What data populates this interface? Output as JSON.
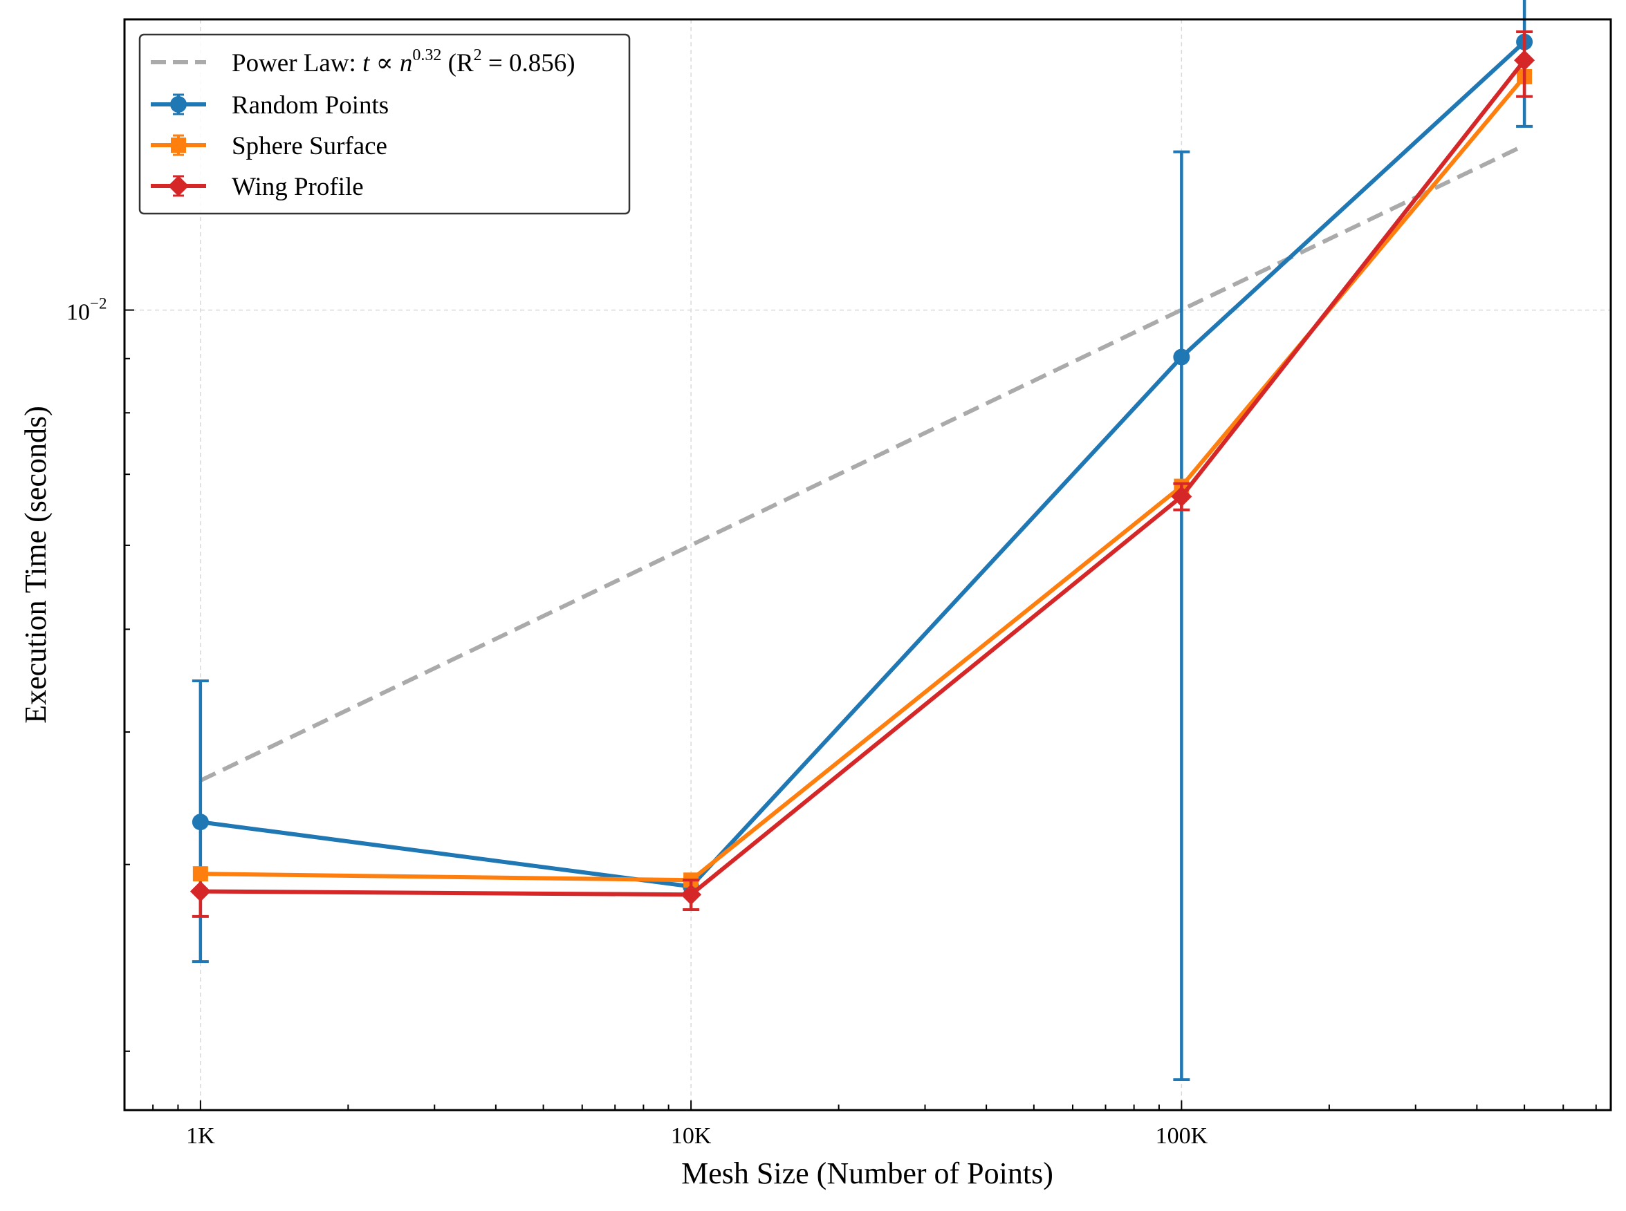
{
  "chart_data": {
    "type": "line",
    "xlabel": "Mesh Size (Number of Points)",
    "ylabel": "Execution Time (seconds)",
    "x_scale": "log",
    "y_scale": "log",
    "xlim": [
      700,
      750000
    ],
    "ylim": [
      0.00176,
      0.0188
    ],
    "x_ticks": [
      {
        "value": 1000,
        "label": "1K"
      },
      {
        "value": 10000,
        "label": "10K"
      },
      {
        "value": 100000,
        "label": "100K"
      }
    ],
    "y_ticks": [
      {
        "value": 0.01,
        "label_base": "10",
        "label_exp": "−2"
      }
    ],
    "grid": true,
    "legend_position": "top-left",
    "series": [
      {
        "name": "Random Points",
        "color": "#1f77b4",
        "marker": "circle",
        "x": [
          1000,
          10000,
          100000,
          500000
        ],
        "y": [
          0.00329,
          0.00286,
          0.00903,
          0.0179
        ],
        "err_low": [
          0.00243,
          null,
          0.00188,
          0.0149
        ],
        "err_high": [
          0.00447,
          null,
          0.0141,
          0.0218
        ]
      },
      {
        "name": "Sphere Surface",
        "color": "#ff7f0e",
        "marker": "square",
        "x": [
          1000,
          10000,
          100000,
          500000
        ],
        "y": [
          0.00294,
          0.0029,
          0.00682,
          0.0166
        ],
        "err_low": [
          null,
          null,
          null,
          null
        ],
        "err_high": [
          null,
          null,
          null,
          null
        ]
      },
      {
        "name": "Wing Profile",
        "color": "#d62728",
        "marker": "diamond",
        "x": [
          1000,
          10000,
          100000,
          500000
        ],
        "y": [
          0.00283,
          0.00281,
          0.00667,
          0.0172
        ],
        "err_low": [
          0.00268,
          0.00272,
          0.00648,
          0.0159
        ],
        "err_high": [
          null,
          0.0029,
          0.00686,
          0.0183
        ]
      }
    ],
    "fit_line": {
      "name_prefix": "Power Law: ",
      "name_formula": "t ∝ n",
      "exponent": "0.32",
      "r2_text": " (R",
      "r2_sup": "2",
      "r2_value": " = 0.856)",
      "color": "#aaaaaa",
      "style": "dashed",
      "x": [
        1000,
        500000
      ],
      "y": [
        0.0036,
        0.0143
      ]
    }
  }
}
